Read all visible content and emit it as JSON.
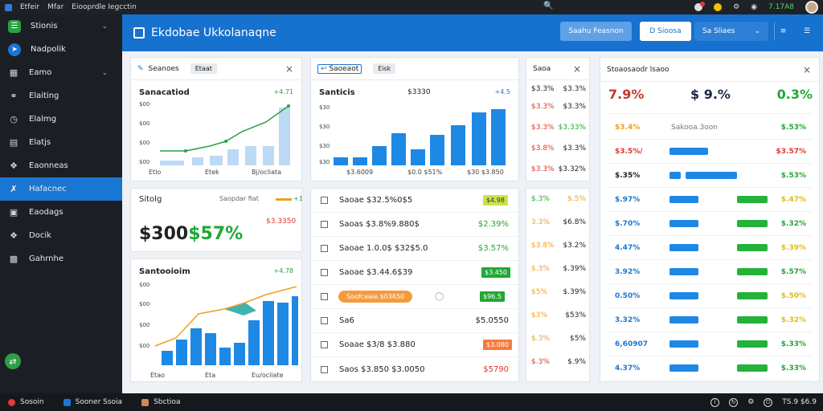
{
  "topbar": {
    "title_a": "Etfeir",
    "title_b": "Mfar",
    "title_c": "Eiooprdle Iegcctin",
    "search_icon": "search-icon",
    "clock": "7.17A8"
  },
  "sidebar": {
    "items": [
      {
        "label": "Stionis",
        "icon": "logo-icon"
      },
      {
        "label": "Nadpolik",
        "icon": "compass-icon"
      },
      {
        "label": "Eamo",
        "icon": "grid-icon"
      },
      {
        "label": "Elaiting",
        "icon": "link-icon"
      },
      {
        "label": "Elalmg",
        "icon": "clock-icon"
      },
      {
        "label": "Elatjs",
        "icon": "calendar-icon"
      },
      {
        "label": "Eaonneas",
        "icon": "puzzle-icon"
      },
      {
        "label": "Hafacnec",
        "icon": "tools-icon"
      },
      {
        "label": "Eaodags",
        "icon": "monitor-icon"
      },
      {
        "label": "Docik",
        "icon": "puzzle-icon"
      },
      {
        "label": "Gahrnhe",
        "icon": "briefcase-icon"
      }
    ]
  },
  "header": {
    "title": "Ekdobae Ukkolanaqne",
    "btn_primary": "Saahu Feasnon",
    "btn_white": "D Sioosa",
    "btn_dropdown": "Sa Sliaes",
    "btn_icon": "list-icon"
  },
  "card1": {
    "tab": "Seanoes",
    "pill": "Etaat",
    "title": "Sanacatiod",
    "trend": "+4.71",
    "yticks": [
      "$00",
      "$00",
      "$00",
      "$00"
    ],
    "xticks": [
      "Etlo",
      "Etek",
      "Bj/ocliata"
    ]
  },
  "card2": {
    "tab": "Saoeaot",
    "pill": "Eisk",
    "title": "Santicis",
    "value": "$3330",
    "trend": "+4.5",
    "yticks": [
      "$30",
      "$30",
      "$30",
      "$30"
    ],
    "xticks": [
      "$3.6009",
      "$0.0 $51%",
      "$30 $3.850"
    ]
  },
  "card3": {
    "title": "Sitolg",
    "sub": "Saopdar fiat",
    "trend": "+1",
    "amount": "$3.3350",
    "big_a": "$300",
    "big_b": "$57%"
  },
  "card4": {
    "title": "Santooioim",
    "trend": "+4.78",
    "yticks": [
      "$00",
      "$00",
      "$00",
      "$00"
    ],
    "xticks": [
      "Etao",
      "Eta",
      "Eu/ocliate"
    ]
  },
  "tasks": {
    "rows": [
      {
        "label": "Saoae $32.5%0$5",
        "value": "$4.98"
      },
      {
        "label": "Saoas $3.8%9.880$",
        "value": "$2.39%"
      },
      {
        "label": "Saoae 1.0.0$ $32$5.0",
        "value": "$3.57%"
      },
      {
        "label": "Saoae $3.44.6$39",
        "value": "$3.450"
      },
      {
        "label": "Soofceaie.$03650",
        "value": "$96.5"
      },
      {
        "label": "Sa6",
        "value": "$5.0550"
      },
      {
        "label": "Soaae $3/8 $3.880",
        "value": "$3.080"
      },
      {
        "label": "Saos $3.850 $3.0050",
        "value": "$5790"
      }
    ]
  },
  "col5": {
    "tab": "Saoa",
    "rows": [
      [
        "$3.3%",
        "$3.3%"
      ],
      [
        "$3.3%",
        "$3.3%"
      ],
      [
        "$3.3%",
        "$3.33%"
      ],
      [
        "$3.8%",
        "$3.3%"
      ],
      [
        "$3.3%",
        "$3.32%"
      ]
    ]
  },
  "col5b": {
    "rows": [
      [
        "$.3%",
        "$.5%"
      ],
      [
        "3.3%",
        "$6.8%"
      ],
      [
        "$3.8%",
        "$3.2%"
      ],
      [
        "$.3%",
        "$.39%"
      ],
      [
        "$5%",
        "$.39%"
      ],
      [
        "$3%",
        "$53%"
      ],
      [
        "$.3%",
        "$5%"
      ],
      [
        "$.3%",
        "$.9%"
      ]
    ]
  },
  "panel": {
    "title": "Stoaosaodr lsaoo",
    "kpis": [
      "7.9%",
      "$ 9.%",
      "0.3%"
    ],
    "rows": [
      {
        "a": "$3.4%",
        "b": "Sakooa.3oon",
        "c": "$.53%"
      },
      {
        "a": "$3.5%/",
        "b": "",
        "c": "$3.57%"
      },
      {
        "a": "$.35%",
        "b": "",
        "c": "$.53%"
      },
      {
        "a": "$.97%",
        "b": "",
        "c": "$.47%"
      },
      {
        "a": "$.70%",
        "b": "",
        "c": "$.32%"
      },
      {
        "a": "4.47%",
        "b": "",
        "c": "$.39%"
      },
      {
        "a": "3.92%",
        "b": "",
        "c": "$.57%"
      },
      {
        "a": "0.50%",
        "b": "",
        "c": "$.50%"
      },
      {
        "a": "3.32%",
        "b": "",
        "c": "$.32%"
      },
      {
        "a": "6,60907",
        "b": "",
        "c": "$.33%"
      },
      {
        "a": "4.37%",
        "b": "",
        "c": "$.33%"
      }
    ]
  },
  "bottom": {
    "items": [
      "Sosoin",
      "Sooner Ssoia",
      "Sbctioa"
    ],
    "right": "TS.9 $6.9"
  },
  "colors": {
    "accent": "#1671cf",
    "sidebar": "#1b1f25",
    "green": "#23b23a",
    "red": "#e0372e",
    "orange": "#f49b3e"
  }
}
